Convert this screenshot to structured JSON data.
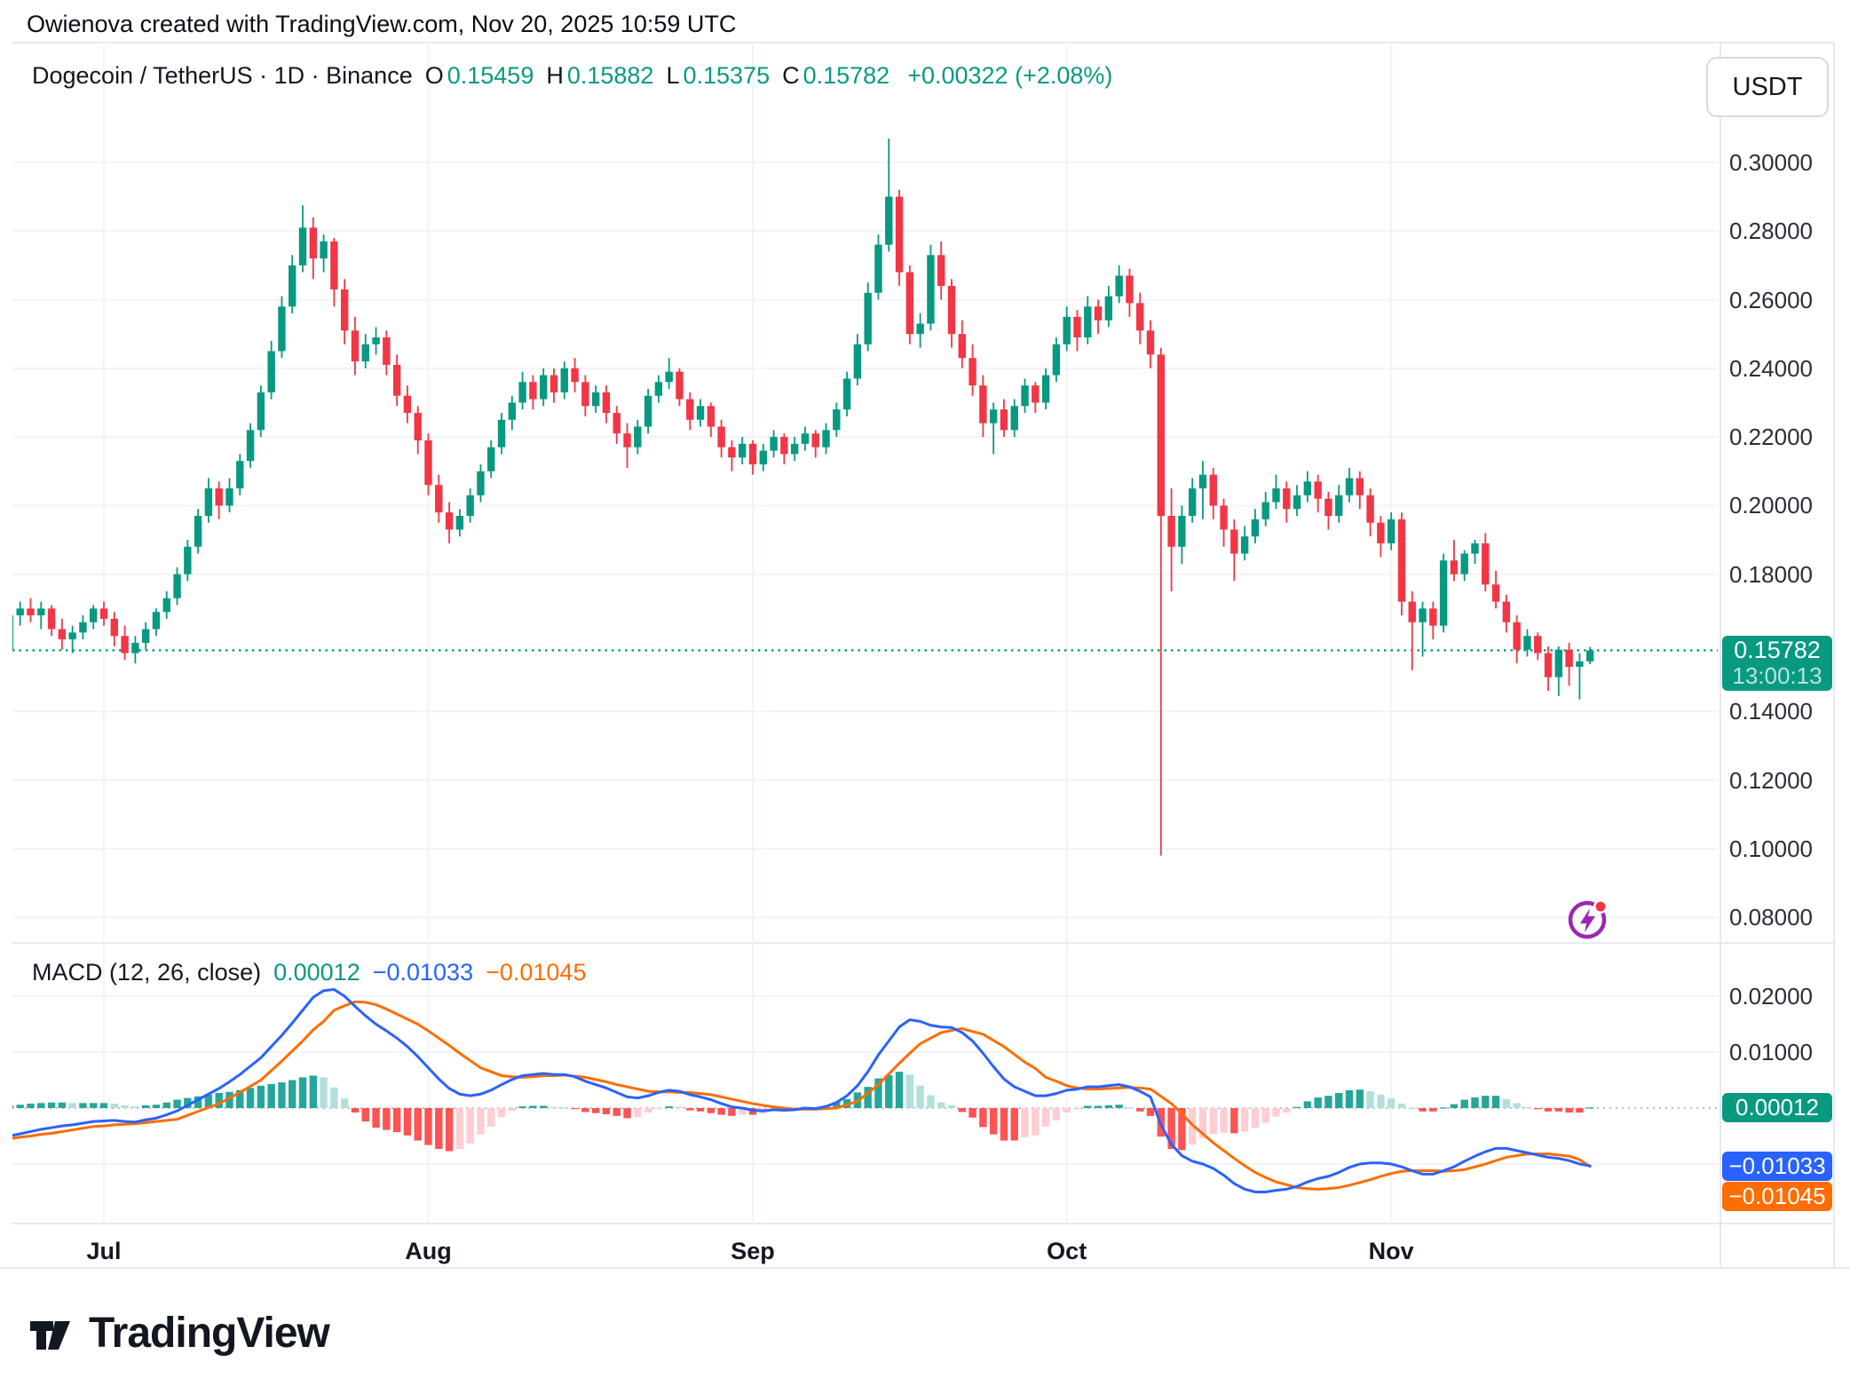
{
  "header": {
    "attribution": "Owienova created with TradingView.com, Nov 20, 2025 10:59 UTC"
  },
  "legend": {
    "title": "Dogecoin / TetherUS · 1D · Binance",
    "o_label": "O",
    "o_value": "0.15459",
    "h_label": "H",
    "h_value": "0.15882",
    "l_label": "L",
    "l_value": "0.15375",
    "c_label": "C",
    "c_value": "0.15782",
    "change": "+0.00322 (+2.08%)"
  },
  "currency_button": {
    "label": "USDT"
  },
  "price_scale": {
    "ticks": [
      {
        "v": 0.3,
        "label": "0.30000"
      },
      {
        "v": 0.28,
        "label": "0.28000"
      },
      {
        "v": 0.26,
        "label": "0.26000"
      },
      {
        "v": 0.24,
        "label": "0.24000"
      },
      {
        "v": 0.22,
        "label": "0.22000"
      },
      {
        "v": 0.2,
        "label": "0.20000"
      },
      {
        "v": 0.18,
        "label": "0.18000"
      },
      {
        "v": 0.14,
        "label": "0.14000"
      },
      {
        "v": 0.12,
        "label": "0.12000"
      },
      {
        "v": 0.1,
        "label": "0.10000"
      },
      {
        "v": 0.08,
        "label": "0.08000"
      }
    ],
    "badge": {
      "price": "0.15782",
      "countdown": "13:00:13"
    }
  },
  "macd_scale": {
    "ticks": [
      {
        "v": 0.02,
        "label": "0.02000"
      },
      {
        "v": 0.01,
        "label": "0.01000"
      }
    ],
    "badges": [
      {
        "name": "hist",
        "label": "0.00012",
        "color": "#089981",
        "v": 0.00012
      },
      {
        "name": "macd",
        "label": "−0.01033",
        "color": "#2962ff",
        "v": -0.01033
      },
      {
        "name": "signal",
        "label": "−0.01045",
        "color": "#ff6d00",
        "v": -0.01045
      }
    ]
  },
  "macd_legend": {
    "name": "MACD",
    "params": "(12, 26, close)",
    "hist_value": "0.00012",
    "macd_value": "−0.01033",
    "signal_value": "−0.01045"
  },
  "logo": {
    "wordmark": "TradingView"
  },
  "colors": {
    "up": "#089981",
    "down": "#f23645",
    "macd_line": "#2962ff",
    "signal_line": "#ff6d00",
    "hist_grow_above": "#26a69a",
    "hist_fall_above": "#b2dfdb",
    "hist_fall_below": "#ff5252",
    "hist_grow_below": "#ffcdd2",
    "grid": "#f0f3fa",
    "axis_border": "#e0e3eb",
    "price_line": "#089981",
    "zero_line": "#9598a1",
    "boost_purple": "#9c27b0",
    "dot_red": "#f23645"
  },
  "chart_data": {
    "type": "candlestick",
    "title": "Dogecoin / TetherUS",
    "interval": "1D",
    "exchange": "Binance",
    "start_date": "2025-06-22",
    "frequency": "daily",
    "price_axis_range": [
      0.08,
      0.31
    ],
    "last_close": 0.15782,
    "month_ticks": [
      {
        "label": "Jul",
        "bar_index": 9
      },
      {
        "label": "Aug",
        "bar_index": 40
      },
      {
        "label": "Sep",
        "bar_index": 71
      },
      {
        "label": "Oct",
        "bar_index": 101
      },
      {
        "label": "Nov",
        "bar_index": 132
      }
    ],
    "ohlc": [
      [
        0.158,
        0.169,
        0.147,
        0.168
      ],
      [
        0.168,
        0.172,
        0.165,
        0.17
      ],
      [
        0.17,
        0.173,
        0.166,
        0.168
      ],
      [
        0.168,
        0.172,
        0.164,
        0.17
      ],
      [
        0.17,
        0.171,
        0.162,
        0.164
      ],
      [
        0.164,
        0.167,
        0.158,
        0.161
      ],
      [
        0.161,
        0.165,
        0.157,
        0.163
      ],
      [
        0.163,
        0.168,
        0.161,
        0.166
      ],
      [
        0.166,
        0.171,
        0.164,
        0.17
      ],
      [
        0.17,
        0.172,
        0.165,
        0.167
      ],
      [
        0.167,
        0.169,
        0.159,
        0.162
      ],
      [
        0.162,
        0.165,
        0.155,
        0.157
      ],
      [
        0.157,
        0.162,
        0.154,
        0.16
      ],
      [
        0.16,
        0.166,
        0.158,
        0.164
      ],
      [
        0.164,
        0.17,
        0.162,
        0.169
      ],
      [
        0.169,
        0.175,
        0.167,
        0.173
      ],
      [
        0.173,
        0.182,
        0.171,
        0.18
      ],
      [
        0.18,
        0.19,
        0.178,
        0.188
      ],
      [
        0.188,
        0.199,
        0.186,
        0.197
      ],
      [
        0.197,
        0.208,
        0.195,
        0.205
      ],
      [
        0.205,
        0.207,
        0.196,
        0.2
      ],
      [
        0.2,
        0.208,
        0.198,
        0.205
      ],
      [
        0.205,
        0.215,
        0.203,
        0.213
      ],
      [
        0.213,
        0.224,
        0.211,
        0.222
      ],
      [
        0.222,
        0.235,
        0.22,
        0.233
      ],
      [
        0.233,
        0.248,
        0.231,
        0.245
      ],
      [
        0.245,
        0.261,
        0.243,
        0.258
      ],
      [
        0.258,
        0.273,
        0.256,
        0.27
      ],
      [
        0.27,
        0.2875,
        0.268,
        0.281
      ],
      [
        0.281,
        0.284,
        0.266,
        0.272
      ],
      [
        0.272,
        0.279,
        0.268,
        0.277
      ],
      [
        0.277,
        0.278,
        0.258,
        0.263
      ],
      [
        0.263,
        0.266,
        0.247,
        0.251
      ],
      [
        0.251,
        0.255,
        0.238,
        0.242
      ],
      [
        0.242,
        0.25,
        0.24,
        0.247
      ],
      [
        0.247,
        0.252,
        0.244,
        0.249
      ],
      [
        0.249,
        0.251,
        0.238,
        0.241
      ],
      [
        0.241,
        0.244,
        0.229,
        0.232
      ],
      [
        0.232,
        0.235,
        0.224,
        0.227
      ],
      [
        0.227,
        0.229,
        0.215,
        0.219
      ],
      [
        0.219,
        0.221,
        0.203,
        0.206
      ],
      [
        0.206,
        0.209,
        0.195,
        0.198
      ],
      [
        0.198,
        0.201,
        0.189,
        0.193
      ],
      [
        0.193,
        0.199,
        0.191,
        0.197
      ],
      [
        0.197,
        0.205,
        0.195,
        0.203
      ],
      [
        0.203,
        0.212,
        0.201,
        0.21
      ],
      [
        0.21,
        0.219,
        0.208,
        0.217
      ],
      [
        0.217,
        0.227,
        0.215,
        0.225
      ],
      [
        0.225,
        0.232,
        0.222,
        0.23
      ],
      [
        0.23,
        0.239,
        0.228,
        0.236
      ],
      [
        0.236,
        0.238,
        0.228,
        0.231
      ],
      [
        0.231,
        0.24,
        0.229,
        0.238
      ],
      [
        0.238,
        0.24,
        0.23,
        0.233
      ],
      [
        0.233,
        0.242,
        0.231,
        0.24
      ],
      [
        0.24,
        0.243,
        0.233,
        0.236
      ],
      [
        0.236,
        0.238,
        0.226,
        0.229
      ],
      [
        0.229,
        0.235,
        0.227,
        0.233
      ],
      [
        0.233,
        0.235,
        0.224,
        0.227
      ],
      [
        0.227,
        0.229,
        0.218,
        0.221
      ],
      [
        0.221,
        0.224,
        0.211,
        0.217
      ],
      [
        0.217,
        0.225,
        0.215,
        0.223
      ],
      [
        0.223,
        0.234,
        0.221,
        0.232
      ],
      [
        0.232,
        0.238,
        0.23,
        0.236
      ],
      [
        0.236,
        0.243,
        0.234,
        0.239
      ],
      [
        0.239,
        0.24,
        0.229,
        0.231
      ],
      [
        0.231,
        0.233,
        0.222,
        0.225
      ],
      [
        0.225,
        0.231,
        0.223,
        0.229
      ],
      [
        0.229,
        0.23,
        0.22,
        0.223
      ],
      [
        0.223,
        0.225,
        0.214,
        0.217
      ],
      [
        0.217,
        0.219,
        0.21,
        0.214
      ],
      [
        0.214,
        0.22,
        0.212,
        0.218
      ],
      [
        0.218,
        0.219,
        0.209,
        0.212
      ],
      [
        0.212,
        0.218,
        0.21,
        0.216
      ],
      [
        0.216,
        0.222,
        0.214,
        0.22
      ],
      [
        0.22,
        0.221,
        0.212,
        0.215
      ],
      [
        0.215,
        0.22,
        0.213,
        0.218
      ],
      [
        0.218,
        0.223,
        0.216,
        0.221
      ],
      [
        0.221,
        0.222,
        0.214,
        0.217
      ],
      [
        0.217,
        0.224,
        0.215,
        0.222
      ],
      [
        0.222,
        0.23,
        0.22,
        0.228
      ],
      [
        0.228,
        0.239,
        0.226,
        0.237
      ],
      [
        0.237,
        0.25,
        0.235,
        0.247
      ],
      [
        0.247,
        0.265,
        0.245,
        0.262
      ],
      [
        0.262,
        0.279,
        0.26,
        0.276
      ],
      [
        0.276,
        0.307,
        0.274,
        0.29
      ],
      [
        0.29,
        0.292,
        0.264,
        0.268
      ],
      [
        0.268,
        0.27,
        0.247,
        0.25
      ],
      [
        0.25,
        0.256,
        0.246,
        0.253
      ],
      [
        0.253,
        0.276,
        0.251,
        0.273
      ],
      [
        0.273,
        0.277,
        0.26,
        0.264
      ],
      [
        0.264,
        0.266,
        0.246,
        0.25
      ],
      [
        0.25,
        0.254,
        0.24,
        0.243
      ],
      [
        0.243,
        0.247,
        0.232,
        0.235
      ],
      [
        0.235,
        0.238,
        0.22,
        0.224
      ],
      [
        0.224,
        0.23,
        0.215,
        0.228
      ],
      [
        0.228,
        0.231,
        0.22,
        0.222
      ],
      [
        0.222,
        0.231,
        0.22,
        0.229
      ],
      [
        0.229,
        0.237,
        0.227,
        0.235
      ],
      [
        0.235,
        0.236,
        0.227,
        0.23
      ],
      [
        0.23,
        0.24,
        0.228,
        0.238
      ],
      [
        0.238,
        0.249,
        0.236,
        0.247
      ],
      [
        0.247,
        0.258,
        0.245,
        0.255
      ],
      [
        0.255,
        0.257,
        0.245,
        0.249
      ],
      [
        0.249,
        0.261,
        0.247,
        0.258
      ],
      [
        0.258,
        0.26,
        0.25,
        0.254
      ],
      [
        0.254,
        0.264,
        0.252,
        0.261
      ],
      [
        0.261,
        0.27,
        0.259,
        0.267
      ],
      [
        0.267,
        0.269,
        0.255,
        0.259
      ],
      [
        0.259,
        0.262,
        0.247,
        0.251
      ],
      [
        0.251,
        0.254,
        0.24,
        0.244
      ],
      [
        0.244,
        0.246,
        0.098,
        0.197
      ],
      [
        0.197,
        0.205,
        0.175,
        0.188
      ],
      [
        0.188,
        0.2,
        0.183,
        0.197
      ],
      [
        0.197,
        0.208,
        0.195,
        0.205
      ],
      [
        0.205,
        0.213,
        0.196,
        0.209
      ],
      [
        0.209,
        0.211,
        0.196,
        0.2
      ],
      [
        0.2,
        0.202,
        0.188,
        0.193
      ],
      [
        0.193,
        0.196,
        0.178,
        0.186
      ],
      [
        0.186,
        0.194,
        0.184,
        0.191
      ],
      [
        0.191,
        0.199,
        0.189,
        0.196
      ],
      [
        0.196,
        0.204,
        0.194,
        0.201
      ],
      [
        0.201,
        0.209,
        0.199,
        0.205
      ],
      [
        0.205,
        0.207,
        0.195,
        0.199
      ],
      [
        0.199,
        0.206,
        0.197,
        0.203
      ],
      [
        0.203,
        0.21,
        0.201,
        0.207
      ],
      [
        0.207,
        0.209,
        0.198,
        0.202
      ],
      [
        0.202,
        0.204,
        0.193,
        0.197
      ],
      [
        0.197,
        0.206,
        0.195,
        0.203
      ],
      [
        0.203,
        0.211,
        0.201,
        0.208
      ],
      [
        0.208,
        0.21,
        0.199,
        0.203
      ],
      [
        0.203,
        0.205,
        0.191,
        0.195
      ],
      [
        0.195,
        0.197,
        0.185,
        0.189
      ],
      [
        0.189,
        0.198,
        0.187,
        0.196
      ],
      [
        0.196,
        0.198,
        0.168,
        0.172
      ],
      [
        0.172,
        0.175,
        0.152,
        0.166
      ],
      [
        0.166,
        0.172,
        0.156,
        0.17
      ],
      [
        0.17,
        0.172,
        0.161,
        0.165
      ],
      [
        0.165,
        0.186,
        0.163,
        0.184
      ],
      [
        0.184,
        0.19,
        0.178,
        0.18
      ],
      [
        0.18,
        0.187,
        0.178,
        0.186
      ],
      [
        0.186,
        0.19,
        0.183,
        0.189
      ],
      [
        0.189,
        0.192,
        0.175,
        0.177
      ],
      [
        0.177,
        0.181,
        0.17,
        0.172
      ],
      [
        0.172,
        0.174,
        0.163,
        0.166
      ],
      [
        0.166,
        0.168,
        0.154,
        0.158
      ],
      [
        0.158,
        0.164,
        0.156,
        0.162
      ],
      [
        0.162,
        0.163,
        0.155,
        0.157
      ],
      [
        0.157,
        0.159,
        0.146,
        0.15
      ],
      [
        0.15,
        0.159,
        0.1445,
        0.158
      ],
      [
        0.158,
        0.16,
        0.1475,
        0.153
      ],
      [
        0.153,
        0.157,
        0.1435,
        0.15459
      ],
      [
        0.15459,
        0.15882,
        0.15375,
        0.15782
      ]
    ],
    "macd": {
      "params": "12, 26, close",
      "last": {
        "macd": -0.01033,
        "signal": -0.01045,
        "hist": 0.00012
      },
      "axis_ticks": [
        0.02,
        0.01
      ],
      "macd_line": [
        -0.005,
        -0.0046,
        -0.0042,
        -0.0038,
        -0.0035,
        -0.0032,
        -0.003,
        -0.0027,
        -0.0024,
        -0.0023,
        -0.0022,
        -0.0024,
        -0.0025,
        -0.0021,
        -0.0018,
        -0.0012,
        -0.0005,
        0.0005,
        0.0015,
        0.0025,
        0.0035,
        0.0047,
        0.006,
        0.0075,
        0.009,
        0.011,
        0.013,
        0.0152,
        0.0175,
        0.0198,
        0.021,
        0.0212,
        0.02,
        0.0182,
        0.0165,
        0.015,
        0.0138,
        0.0125,
        0.011,
        0.0092,
        0.0072,
        0.0052,
        0.0035,
        0.0025,
        0.0022,
        0.0025,
        0.0032,
        0.0042,
        0.0051,
        0.0058,
        0.006,
        0.0062,
        0.006,
        0.006,
        0.0056,
        0.0048,
        0.0042,
        0.0036,
        0.0028,
        0.002,
        0.0018,
        0.0022,
        0.0028,
        0.0032,
        0.003,
        0.0024,
        0.002,
        0.0015,
        0.0008,
        0.0002,
        0.0,
        -0.0004,
        -0.0005,
        -0.0003,
        -0.0004,
        -0.0003,
        0.0,
        -0.0001,
        0.0003,
        0.001,
        0.0022,
        0.004,
        0.0065,
        0.0095,
        0.012,
        0.0145,
        0.0158,
        0.0155,
        0.0148,
        0.0145,
        0.0144,
        0.0135,
        0.012,
        0.0098,
        0.0074,
        0.0052,
        0.0038,
        0.003,
        0.0022,
        0.0022,
        0.0026,
        0.0032,
        0.0034,
        0.0038,
        0.0038,
        0.004,
        0.0042,
        0.0038,
        0.003,
        0.002,
        -0.003,
        -0.0065,
        -0.0085,
        -0.0095,
        -0.01,
        -0.0108,
        -0.012,
        -0.0135,
        -0.0145,
        -0.015,
        -0.015,
        -0.0147,
        -0.0145,
        -0.014,
        -0.0132,
        -0.0126,
        -0.0122,
        -0.0115,
        -0.0106,
        -0.01,
        -0.0098,
        -0.0098,
        -0.01,
        -0.0105,
        -0.0112,
        -0.0118,
        -0.0118,
        -0.0112,
        -0.0105,
        -0.0095,
        -0.0086,
        -0.0078,
        -0.0072,
        -0.0072,
        -0.0076,
        -0.008,
        -0.0084,
        -0.0088,
        -0.009,
        -0.0094,
        -0.01,
        -0.01033
      ],
      "signal_line": [
        -0.0055,
        -0.0052,
        -0.005,
        -0.0047,
        -0.0045,
        -0.0042,
        -0.0039,
        -0.0036,
        -0.0033,
        -0.0032,
        -0.003,
        -0.0029,
        -0.0028,
        -0.0026,
        -0.0024,
        -0.0022,
        -0.002,
        -0.0013,
        -0.0006,
        0.0001,
        0.0008,
        0.0018,
        0.0028,
        0.0039,
        0.005,
        0.0067,
        0.0084,
        0.0102,
        0.012,
        0.014,
        0.0155,
        0.0175,
        0.0183,
        0.019,
        0.0189,
        0.0185,
        0.0177,
        0.0168,
        0.0159,
        0.015,
        0.0138,
        0.0125,
        0.0112,
        0.0098,
        0.0085,
        0.0072,
        0.0065,
        0.0058,
        0.0056,
        0.0055,
        0.0056,
        0.0058,
        0.0058,
        0.0059,
        0.0057,
        0.0055,
        0.0051,
        0.0047,
        0.0042,
        0.0038,
        0.0034,
        0.003,
        0.0029,
        0.0029,
        0.0028,
        0.0028,
        0.0026,
        0.0024,
        0.002,
        0.0016,
        0.0012,
        0.0008,
        0.0005,
        0.0002,
        0.0,
        -0.0002,
        -0.0002,
        -0.0002,
        -0.0001,
        0.0,
        0.0006,
        0.0012,
        0.0027,
        0.0042,
        0.0061,
        0.008,
        0.0098,
        0.0115,
        0.0125,
        0.0135,
        0.0139,
        0.0142,
        0.0137,
        0.0132,
        0.0121,
        0.011,
        0.0096,
        0.0082,
        0.0071,
        0.0055,
        0.0048,
        0.004,
        0.0036,
        0.0034,
        0.0034,
        0.0035,
        0.0036,
        0.0037,
        0.0036,
        0.0034,
        0.0021,
        0.0008,
        -0.001,
        -0.003,
        -0.0046,
        -0.0062,
        -0.0076,
        -0.009,
        -0.0103,
        -0.0115,
        -0.0124,
        -0.0132,
        -0.0137,
        -0.0142,
        -0.0144,
        -0.0145,
        -0.0144,
        -0.0142,
        -0.0138,
        -0.0133,
        -0.0128,
        -0.0122,
        -0.0117,
        -0.0113,
        -0.0112,
        -0.0112,
        -0.0112,
        -0.0113,
        -0.0112,
        -0.011,
        -0.0105,
        -0.01,
        -0.0094,
        -0.0088,
        -0.0085,
        -0.0082,
        -0.0082,
        -0.0082,
        -0.0084,
        -0.0086,
        -0.0092,
        -0.01045
      ]
    }
  }
}
